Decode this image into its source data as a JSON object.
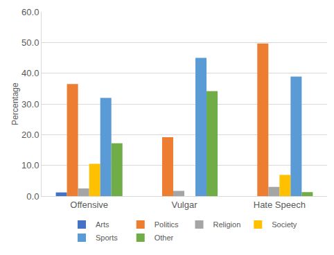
{
  "chart_data": {
    "type": "bar",
    "categories": [
      "Offensive",
      "Vulgar",
      "Hate Speech"
    ],
    "series": [
      {
        "name": "Arts",
        "color": "#4472c4",
        "values": [
          1.2,
          0,
          0
        ]
      },
      {
        "name": "Politics",
        "color": "#ed7d31",
        "values": [
          36.5,
          19.2,
          49.7
        ]
      },
      {
        "name": "Religion",
        "color": "#a5a5a5",
        "values": [
          2.5,
          1.7,
          3.0
        ]
      },
      {
        "name": "Society",
        "color": "#ffc000",
        "values": [
          10.5,
          0,
          6.9
        ]
      },
      {
        "name": "Sports",
        "color": "#5b9bd5",
        "values": [
          32.0,
          45.0,
          38.9
        ]
      },
      {
        "name": "Other",
        "color": "#70ad47",
        "values": [
          17.2,
          34.2,
          1.3
        ]
      }
    ],
    "y_label": "Percentage",
    "ylim": [
      0,
      60
    ],
    "yticks": [
      {
        "value": 0,
        "label": "0.0"
      },
      {
        "value": 10,
        "label": "10.0"
      },
      {
        "value": 20,
        "label": "20.0"
      },
      {
        "value": 30,
        "label": "30.0"
      },
      {
        "value": 40,
        "label": "40.0"
      },
      {
        "value": 50,
        "label": "50.0"
      },
      {
        "value": 60,
        "label": "60.0"
      }
    ],
    "grid": true,
    "legend": "bottom"
  }
}
